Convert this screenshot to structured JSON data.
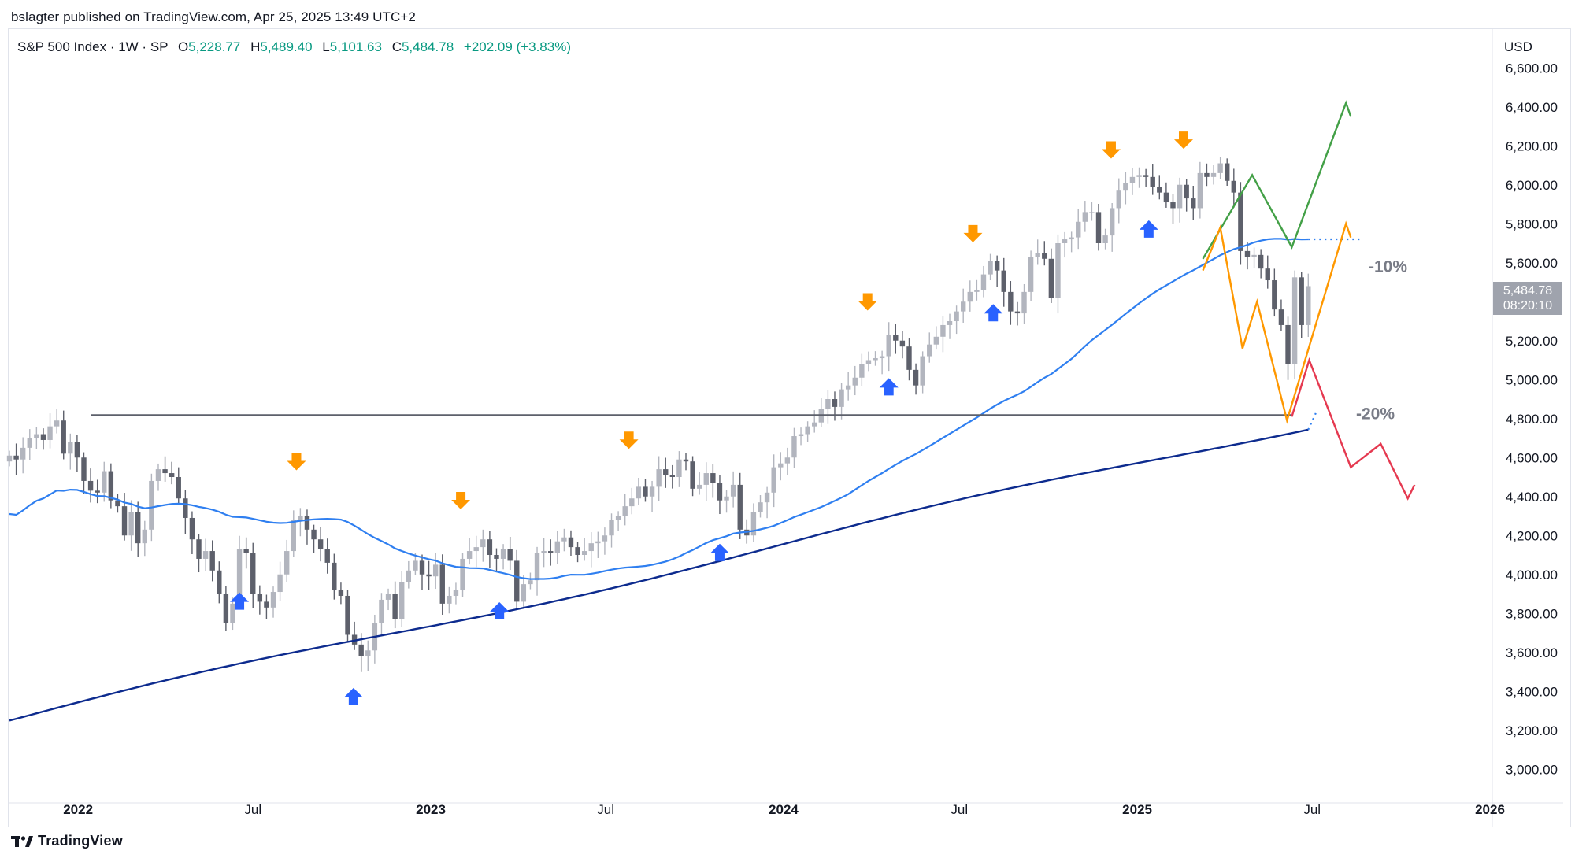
{
  "header": {
    "published": "bslagter published on TradingView.com, Apr 25, 2025 13:49 UTC+2"
  },
  "legend": {
    "symbol": "S&P 500 Index · 1W · SP",
    "open_label": "O",
    "open": "5,228.77",
    "high_label": "H",
    "high": "5,489.40",
    "low_label": "L",
    "low": "5,101.63",
    "close_label": "C",
    "close": "5,484.78",
    "change": "+202.09 (+3.83%)"
  },
  "axis": {
    "currency": "USD"
  },
  "price_tag": {
    "price": "5,484.78",
    "countdown": "08:20:10"
  },
  "footer": {
    "brand": "TradingView"
  },
  "colors": {
    "up_candle": "#b2b5be",
    "down_candle": "#5d606b",
    "ma_light": "#2f7ff0",
    "ma_dark": "#0d2b8e",
    "support_line": "#5d606b",
    "arrow_up": "#2962ff",
    "arrow_down": "#ff9800",
    "scenario_green": "#43a047",
    "scenario_orange": "#ff9800",
    "scenario_red": "#e53950"
  },
  "chart_data": {
    "type": "candlestick",
    "symbol": "S&P 500 Index",
    "interval": "1W",
    "x_start": "2021-10",
    "x_end": "2025-12",
    "ylim": [
      2900,
      6700
    ],
    "y_ticks": [
      "6,600.00",
      "6,400.00",
      "6,200.00",
      "6,000.00",
      "5,800.00",
      "5,600.00",
      "5,400.00",
      "5,200.00",
      "5,000.00",
      "4,800.00",
      "4,600.00",
      "4,400.00",
      "4,200.00",
      "4,000.00",
      "3,800.00",
      "3,600.00",
      "3,400.00",
      "3,200.00",
      "3,000.00"
    ],
    "y_tick_values": [
      6600,
      6400,
      6200,
      6000,
      5800,
      5600,
      5400,
      5200,
      5000,
      4800,
      4600,
      4400,
      4200,
      4000,
      3800,
      3600,
      3400,
      3200,
      3000
    ],
    "x_ticks": [
      {
        "label": "2022",
        "date": "2022-01",
        "bold": true
      },
      {
        "label": "Jul",
        "date": "2022-07",
        "bold": false
      },
      {
        "label": "2023",
        "date": "2023-01",
        "bold": true
      },
      {
        "label": "Jul",
        "date": "2023-07",
        "bold": false
      },
      {
        "label": "2024",
        "date": "2024-01",
        "bold": true
      },
      {
        "label": "Jul",
        "date": "2024-07",
        "bold": false
      },
      {
        "label": "2025",
        "date": "2025-01",
        "bold": true
      },
      {
        "label": "Jul",
        "date": "2025-07",
        "bold": false
      },
      {
        "label": "2026",
        "date": "2026-01",
        "bold": true
      }
    ],
    "weekly_closes": [
      4610,
      4590,
      4650,
      4700,
      4720,
      4690,
      4760,
      4790,
      4620,
      4680,
      4600,
      4480,
      4430,
      4420,
      4530,
      4380,
      4350,
      4200,
      4320,
      4160,
      4230,
      4480,
      4540,
      4520,
      4500,
      4390,
      4290,
      4180,
      4080,
      4120,
      4020,
      3900,
      3750,
      3850,
      4130,
      4110,
      3900,
      3860,
      3830,
      3910,
      4000,
      4120,
      4280,
      4300,
      4230,
      4180,
      4130,
      4060,
      3920,
      3890,
      3690,
      3640,
      3580,
      3610,
      3750,
      3870,
      3900,
      3770,
      3960,
      4020,
      4070,
      4000,
      3990,
      4050,
      3850,
      3890,
      3920,
      4080,
      4120,
      4140,
      4180,
      4100,
      4080,
      4130,
      4070,
      3860,
      3950,
      3970,
      4110,
      4120,
      4110,
      4170,
      4190,
      4140,
      4100,
      4120,
      4160,
      4170,
      4200,
      4280,
      4300,
      4350,
      4390,
      4450,
      4400,
      4450,
      4540,
      4510,
      4500,
      4590,
      4580,
      4440,
      4460,
      4520,
      4470,
      4380,
      4400,
      4460,
      4230,
      4200,
      4320,
      4370,
      4420,
      4550,
      4570,
      4600,
      4710,
      4720,
      4760,
      4780,
      4850,
      4900,
      4860,
      4950,
      4970,
      5010,
      5080,
      5100,
      5110,
      5120,
      5230,
      5200,
      5170,
      5050,
      4970,
      5120,
      5180,
      5220,
      5280,
      5300,
      5350,
      5400,
      5450,
      5460,
      5540,
      5610,
      5560,
      5450,
      5350,
      5340,
      5450,
      5630,
      5650,
      5620,
      5420,
      5700,
      5720,
      5730,
      5810,
      5860,
      5860,
      5700,
      5740,
      5880,
      5970,
      6010,
      6040,
      6050,
      6040,
      5990,
      5960,
      5910,
      5880,
      6000,
      5930,
      5880,
      6060,
      6040,
      6060,
      6110,
      6020,
      5960,
      5660,
      5630,
      5640,
      5570,
      5510,
      5360,
      5280,
      5080,
      5525,
      5280,
      5480
    ],
    "annotations": {
      "support_level": 4818,
      "pct_labels": [
        {
          "text": "-10%",
          "price": 5580
        },
        {
          "text": "-20%",
          "price": 4825
        }
      ],
      "down_arrow_dates": [
        "2022-08-15",
        "2023-02-01",
        "2023-07-25",
        "2024-03-28",
        "2024-07-15",
        "2024-12-05",
        "2025-02-18"
      ],
      "up_arrow_dates": [
        "2022-06-17",
        "2022-10-13",
        "2023-03-13",
        "2023-10-27",
        "2024-04-19",
        "2024-08-05",
        "2025-01-13"
      ],
      "scenarios": [
        {
          "name": "green",
          "points": [
            [
              "2025-03-10",
              5620
            ],
            [
              "2025-04-30",
              6050
            ],
            [
              "2025-06-10",
              5680
            ],
            [
              "2025-08-05",
              6420
            ],
            [
              "2025-08-10",
              6350
            ]
          ]
        },
        {
          "name": "orange",
          "points": [
            [
              "2025-03-10",
              5560
            ],
            [
              "2025-03-28",
              5780
            ],
            [
              "2025-04-20",
              5160
            ],
            [
              "2025-05-05",
              5400
            ],
            [
              "2025-06-05",
              4790
            ],
            [
              "2025-08-05",
              5800
            ],
            [
              "2025-08-10",
              5730
            ]
          ]
        },
        {
          "name": "red",
          "points": [
            [
              "2025-06-10",
              4810
            ],
            [
              "2025-06-28",
              5100
            ],
            [
              "2025-08-10",
              4550
            ],
            [
              "2025-09-10",
              4670
            ],
            [
              "2025-10-08",
              4390
            ],
            [
              "2025-10-15",
              4460
            ]
          ]
        }
      ]
    }
  }
}
